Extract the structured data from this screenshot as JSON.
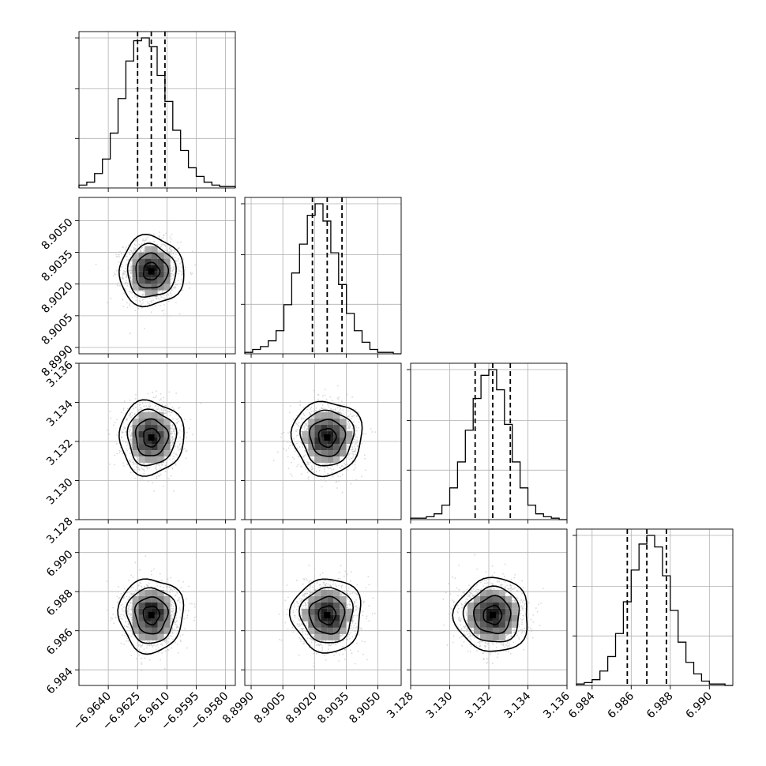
{
  "chart_data": {
    "type": "corner",
    "grid": true,
    "parameters": [
      {
        "index": 0,
        "range": [
          -6.9655,
          -6.9575
        ],
        "ticks": [
          -6.964,
          -6.9625,
          -6.961,
          -6.9595,
          -6.958
        ],
        "tick_labels": [
          "−6.9640",
          "−6.9625",
          "−6.9610",
          "−6.9595",
          "−6.9580"
        ],
        "mean": -6.9618,
        "sd": 0.0007,
        "quantiles": [
          -6.9625,
          -6.9618,
          -6.9611
        ],
        "hist_counts": [
          2,
          4,
          10,
          20,
          38,
          62,
          88,
          102,
          104,
          98,
          78,
          60,
          40,
          26,
          14,
          8,
          4,
          2,
          1,
          1
        ]
      },
      {
        "index": 1,
        "range": [
          8.8987,
          8.9061
        ],
        "ticks": [
          8.899,
          8.9005,
          8.902,
          8.9035,
          8.905
        ],
        "tick_labels": [
          "8.8990",
          "8.9005",
          "8.9020",
          "8.9035",
          "8.9050"
        ],
        "mean": 8.9026,
        "sd": 0.0007,
        "quantiles": [
          8.9019,
          8.9026,
          8.9033
        ],
        "hist_counts": [
          1,
          3,
          5,
          9,
          16,
          34,
          56,
          76,
          96,
          104,
          92,
          70,
          48,
          28,
          16,
          8,
          3,
          1,
          1,
          0
        ]
      },
      {
        "index": 2,
        "range": [
          3.128,
          3.136
        ],
        "ticks": [
          3.128,
          3.13,
          3.132,
          3.134,
          3.136
        ],
        "tick_labels": [
          "3.128",
          "3.130",
          "3.132",
          "3.134",
          "3.136"
        ],
        "mean": 3.1322,
        "sd": 0.0008,
        "quantiles": [
          3.1313,
          3.1322,
          3.1331
        ],
        "hist_counts": [
          1,
          1,
          2,
          4,
          10,
          22,
          40,
          62,
          84,
          100,
          104,
          90,
          66,
          40,
          22,
          10,
          4,
          2,
          1,
          0
        ]
      },
      {
        "index": 3,
        "range": [
          6.9832,
          6.9912
        ],
        "ticks": [
          6.984,
          6.986,
          6.988,
          6.99
        ],
        "tick_labels": [
          "6.984",
          "6.986",
          "6.988",
          "6.990"
        ],
        "mean": 6.9868,
        "sd": 0.0008,
        "quantiles": [
          6.9858,
          6.9868,
          6.9878
        ],
        "hist_counts": [
          1,
          2,
          4,
          10,
          20,
          36,
          58,
          80,
          98,
          104,
          96,
          76,
          52,
          30,
          16,
          8,
          3,
          1,
          1,
          0
        ]
      }
    ],
    "correlations": {
      "0-1": 0.0,
      "0-2": 0.0,
      "0-3": 0.0,
      "1-2": 0.0,
      "1-3": 0.0,
      "2-3": 0.0
    },
    "contour_levels_sigma": [
      0.5,
      1.0,
      1.5,
      2.0
    ],
    "colors": {
      "line": "#000000",
      "scatter": "#c8c8c8",
      "grid": "#b0b0b0"
    }
  }
}
